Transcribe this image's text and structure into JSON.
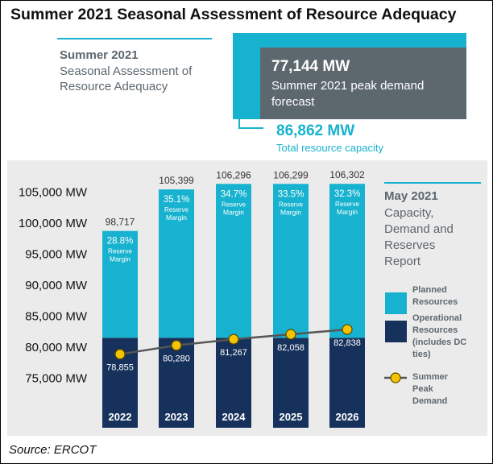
{
  "chart_data": {
    "type": "bar",
    "title": "Summer 2021 Seasonal Assessment of Resource Adequacy",
    "categories": [
      "2022",
      "2023",
      "2024",
      "2025",
      "2026"
    ],
    "series": [
      {
        "name": "Operational Resources (includes DC ties)",
        "color": "#16325c",
        "values": [
          81500,
          81500,
          81500,
          81500,
          81500
        ]
      },
      {
        "name": "Planned Resources",
        "color": "#17b2cf",
        "values": [
          17217,
          23899,
          24796,
          24799,
          24802
        ]
      }
    ],
    "totals": {
      "values": [
        98717,
        105399,
        106296,
        106299,
        106302
      ],
      "value_labels": [
        "98,717",
        "105,399",
        "106,296",
        "106,299",
        "106,302"
      ]
    },
    "reserve_margin": {
      "values": [
        28.8,
        35.1,
        34.7,
        33.5,
        32.3
      ],
      "value_labels": [
        "28.8%",
        "35.1%",
        "34.7%",
        "33.5%",
        "32.3%"
      ],
      "label": "Reserve Margin"
    },
    "demand": {
      "name": "Summer Peak Demand",
      "color": "#f5c400",
      "line_color": "#555555",
      "values": [
        78855,
        80280,
        81267,
        82058,
        82838
      ],
      "value_labels": [
        "78,855",
        "80,280",
        "81,267",
        "82,058",
        "82,838"
      ]
    },
    "ylim": [
      67000,
      107500
    ],
    "yticks": [
      {
        "value": 75000,
        "label": "75,000 MW"
      },
      {
        "value": 80000,
        "label": "80,000 MW"
      },
      {
        "value": 85000,
        "label": "85,000 MW"
      },
      {
        "value": 90000,
        "label": "90,000 MW"
      },
      {
        "value": 95000,
        "label": "95,000 MW"
      },
      {
        "value": 100000,
        "label": "100,000 MW"
      },
      {
        "value": 105000,
        "label": "105,000 MW"
      }
    ],
    "grid": false,
    "legend_position": "right"
  },
  "header": {
    "kicker": "Summer 2021",
    "subtitle": "Seasonal Assessment of Resource Adequacy",
    "peak_value": "77,144 MW",
    "peak_label": "Summer 2021 peak demand forecast",
    "capacity_value": "86,862 MW",
    "capacity_label": "Total resource capacity"
  },
  "report": {
    "date": "May 2021",
    "title": "Capacity, Demand and Reserves Report"
  },
  "source": "Source: ERCOT"
}
